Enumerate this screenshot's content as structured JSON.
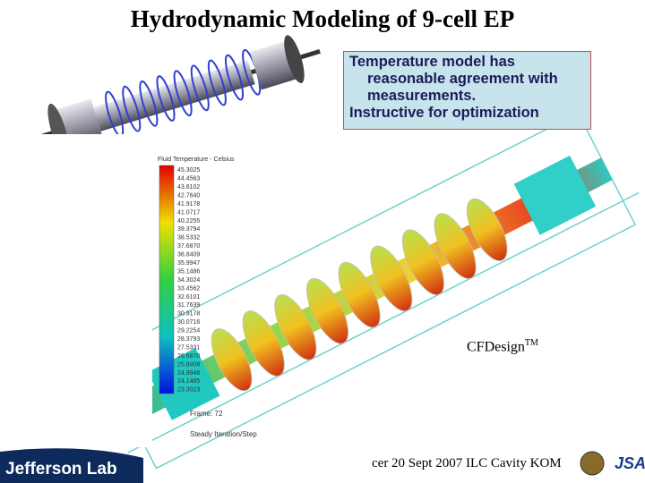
{
  "title": "Hydrodynamic Modeling of 9-cell EP",
  "callout": {
    "items": [
      {
        "lines": [
          "Temperature model has",
          "reasonable agreement with",
          "measurements."
        ]
      },
      {
        "lines": [
          "Instructive for optimization"
        ]
      }
    ]
  },
  "colorbar": {
    "title": "Fluid Temperature - Celsius",
    "labels": [
      "45.3025",
      "44.4563",
      "43.6102",
      "42.7640",
      "41.9178",
      "41.0717",
      "40.2255",
      "39.3794",
      "38.5332",
      "37.6870",
      "36.8409",
      "35.9947",
      "35.1486",
      "34.3024",
      "33.4562",
      "32.6101",
      "31.7639",
      "30.9178",
      "30.0716",
      "29.2254",
      "28.3793",
      "27.5331",
      "26.6870",
      "25.8408",
      "24.9946",
      "24.1485",
      "23.3023"
    ]
  },
  "frame_note": [
    "Frame: 72",
    "Steady Iteration/Step"
  ],
  "software": {
    "name": "CFDesign",
    "mark": "TM"
  },
  "footer": {
    "text": "cer 20 Sept 2007 ILC Cavity KOM",
    "logo": "Jefferson Lab",
    "partner": "JSA"
  }
}
